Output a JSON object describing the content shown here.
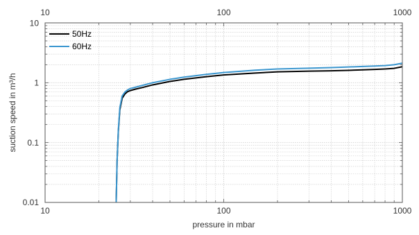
{
  "chart_data": {
    "type": "line",
    "title": "",
    "xlabel": "pressure in mbar",
    "ylabel": "suction speed in m³/h",
    "x_scale": "log",
    "y_scale": "log",
    "xlim": [
      10,
      1000
    ],
    "ylim": [
      0.01,
      10
    ],
    "grid": true,
    "legend_position": "top-left",
    "x_ticks_bottom": [
      "10",
      "100",
      "1000"
    ],
    "x_ticks_top": [
      "10",
      "100",
      "1000"
    ],
    "y_ticks": [
      "0.01",
      "0.1",
      "1",
      "10"
    ],
    "series": [
      {
        "name": "50Hz",
        "color": "#000000",
        "x": [
          25.0,
          25.3,
          25.7,
          26.2,
          27,
          28,
          29,
          30,
          32,
          35,
          40,
          50,
          60,
          80,
          100,
          150,
          200,
          300,
          400,
          500,
          600,
          700,
          800,
          900,
          1000
        ],
        "y": [
          0.01,
          0.05,
          0.15,
          0.35,
          0.55,
          0.65,
          0.71,
          0.74,
          0.78,
          0.83,
          0.92,
          1.05,
          1.14,
          1.26,
          1.35,
          1.45,
          1.52,
          1.56,
          1.58,
          1.61,
          1.64,
          1.67,
          1.7,
          1.74,
          1.85
        ]
      },
      {
        "name": "60Hz",
        "color": "#3a96cf",
        "x": [
          25.0,
          25.3,
          25.7,
          26.2,
          27,
          28,
          29,
          30,
          32,
          35,
          40,
          50,
          60,
          80,
          100,
          150,
          200,
          300,
          400,
          500,
          600,
          700,
          800,
          900,
          1000
        ],
        "y": [
          0.01,
          0.05,
          0.16,
          0.38,
          0.6,
          0.7,
          0.76,
          0.8,
          0.84,
          0.9,
          1.0,
          1.14,
          1.24,
          1.38,
          1.48,
          1.62,
          1.7,
          1.75,
          1.79,
          1.83,
          1.87,
          1.9,
          1.93,
          2.0,
          2.12
        ]
      }
    ]
  }
}
